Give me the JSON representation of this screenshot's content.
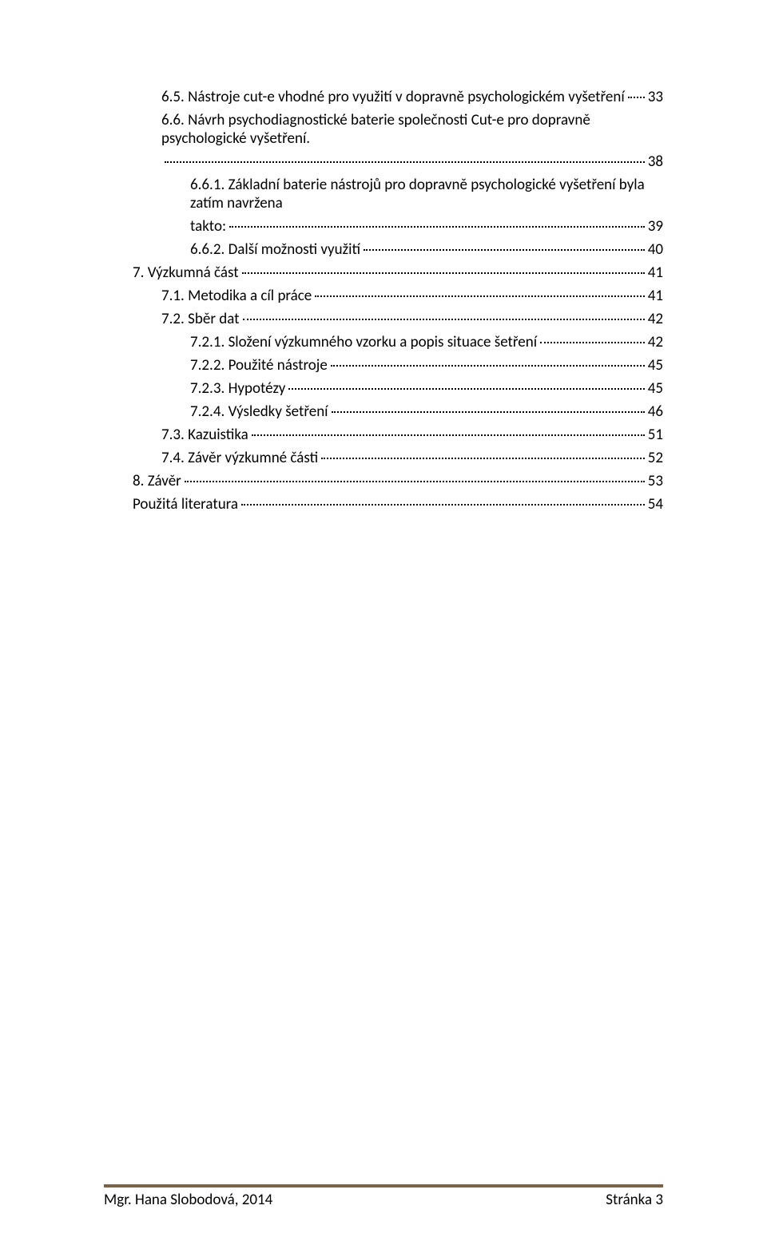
{
  "toc": [
    {
      "indent": 2,
      "label": "6.5. Nástroje cut-e vhodné pro využití v dopravně psychologickém vyšetření",
      "page": "33",
      "twoLine": false
    },
    {
      "indent": 2,
      "label_line1": "6.6. Návrh psychodiagnostické baterie společnosti Cut-e pro dopravně psychologické vyšetření.",
      "label_line2": "",
      "page": "38",
      "twoLine": true
    },
    {
      "indent": 3,
      "label_line1": "6.6.1. Základní baterie nástrojů pro dopravně psychologické vyšetření byla zatím navržena",
      "label_line2": "takto:",
      "page": "39",
      "twoLine": true
    },
    {
      "indent": 3,
      "label": "6.6.2. Další možnosti využití",
      "page": "40",
      "twoLine": false
    },
    {
      "indent": 1,
      "label": "7. Výzkumná část",
      "page": "41",
      "twoLine": false
    },
    {
      "indent": 2,
      "label": "7.1. Metodika a cíl práce",
      "page": "41",
      "twoLine": false
    },
    {
      "indent": 2,
      "label": "7.2. Sběr dat",
      "page": "42",
      "twoLine": false
    },
    {
      "indent": 3,
      "label": "7.2.1. Složení výzkumného vzorku a popis situace šetření",
      "page": "42",
      "twoLine": false
    },
    {
      "indent": 3,
      "label": "7.2.2. Použité nástroje",
      "page": "45",
      "twoLine": false
    },
    {
      "indent": 3,
      "label": "7.2.3. Hypotézy",
      "page": "45",
      "twoLine": false
    },
    {
      "indent": 3,
      "label": "7.2.4. Výsledky šetření",
      "page": "46",
      "twoLine": false
    },
    {
      "indent": 2,
      "label": "7.3. Kazuistika",
      "page": "51",
      "twoLine": false
    },
    {
      "indent": 2,
      "label": "7.4. Závěr výzkumné části",
      "page": "52",
      "twoLine": false
    },
    {
      "indent": 1,
      "label": "8. Závěr",
      "page": "53",
      "twoLine": false
    },
    {
      "indent": 1,
      "label": "Použitá literatura",
      "page": "54",
      "twoLine": false
    }
  ],
  "footer": {
    "left": "Mgr. Hana Slobodová, 2014",
    "right": "Stránka 3"
  },
  "colors": {
    "text": "#000000",
    "background": "#ffffff",
    "footer_line": "#7a6248"
  }
}
